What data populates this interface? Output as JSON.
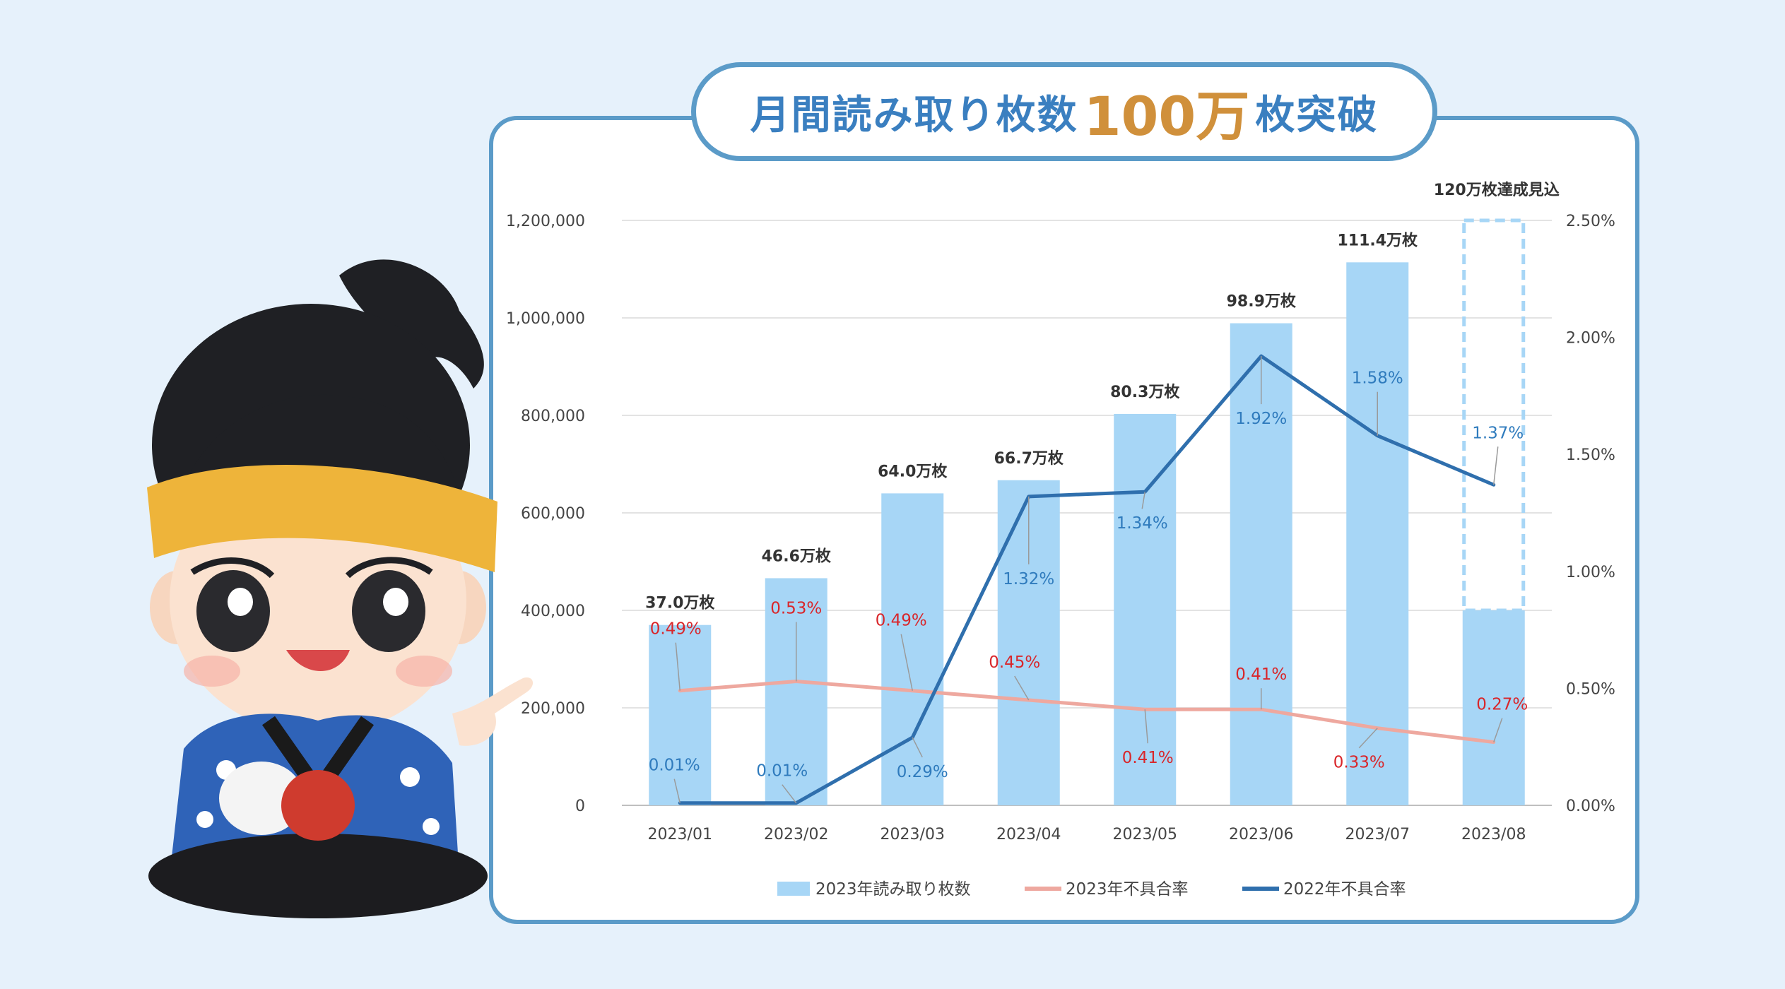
{
  "banner": {
    "pre": "月間読み取り枚数",
    "highlight": "100万",
    "post": "枚突破"
  },
  "colors": {
    "bar": "#a7d6f6",
    "line_2023": "#eea89f",
    "line_2022": "#2f6fad",
    "label_2023": "#d9262a",
    "label_2022": "#2f7bbd",
    "panel_border": "#5b9bc8",
    "highlight": "#d0903b"
  },
  "mascot": {
    "icon": "samurai-mascot-icon"
  },
  "chart_data": {
    "type": "bar",
    "categories": [
      "2023/01",
      "2023/02",
      "2023/03",
      "2023/04",
      "2023/05",
      "2023/06",
      "2023/07",
      "2023/08"
    ],
    "ylim": [
      0,
      1200000
    ],
    "y_ticks": [
      "0",
      "200,000",
      "400,000",
      "600,000",
      "800,000",
      "1,000,000",
      "1,200,000"
    ],
    "y2lim": [
      0,
      2.5
    ],
    "y2_ticks": [
      "0.00%",
      "0.50%",
      "1.00%",
      "1.50%",
      "2.00%",
      "2.50%"
    ],
    "grid": true,
    "legend_position": "bottom",
    "series": [
      {
        "name": "2023年読み取り枚数",
        "type": "bar",
        "axis": "left",
        "values": [
          370000,
          466000,
          640000,
          667000,
          803000,
          989000,
          1114000,
          400000
        ],
        "labels": [
          "37.0万枚",
          "46.6万枚",
          "64.0万枚",
          "66.7万枚",
          "80.3万枚",
          "98.9万枚",
          "111.4万枚",
          ""
        ]
      },
      {
        "name": "2023年不具合率",
        "type": "line",
        "axis": "right",
        "values": [
          0.49,
          0.53,
          0.49,
          0.45,
          0.41,
          0.41,
          0.33,
          0.27
        ],
        "labels": [
          "0.49%",
          "0.53%",
          "0.49%",
          "0.45%",
          "0.41%",
          "0.41%",
          "0.33%",
          "0.27%"
        ]
      },
      {
        "name": "2022年不具合率",
        "type": "line",
        "axis": "right",
        "values": [
          0.01,
          0.01,
          0.29,
          1.32,
          1.34,
          1.92,
          1.58,
          1.37
        ],
        "labels": [
          "0.01%",
          "0.01%",
          "0.29%",
          "1.32%",
          "1.34%",
          "1.92%",
          "1.58%",
          "1.37%"
        ]
      }
    ],
    "projection": {
      "category": "2023/08",
      "from": 400000,
      "to": 1200000,
      "label": "120万枚達成見込"
    }
  }
}
